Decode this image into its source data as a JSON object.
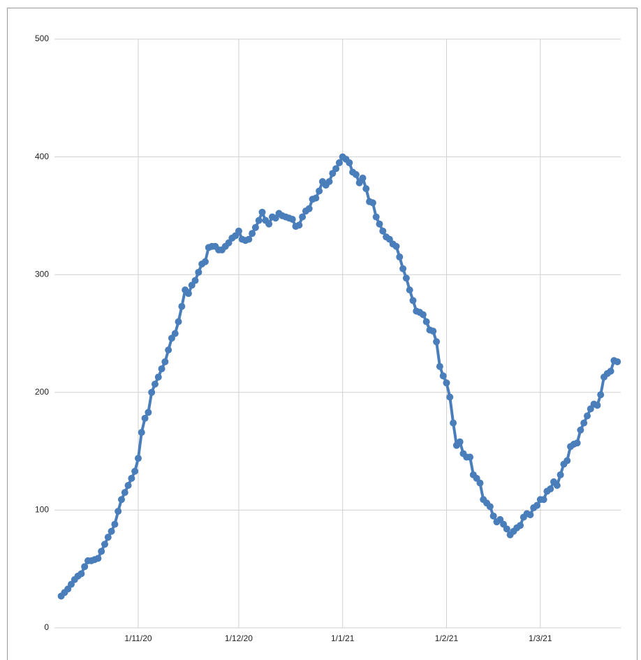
{
  "chart_data": {
    "type": "line",
    "x": [
      "9/10/20",
      "10/10/20",
      "11/10/20",
      "12/10/20",
      "13/10/20",
      "14/10/20",
      "15/10/20",
      "16/10/20",
      "17/10/20",
      "18/10/20",
      "19/10/20",
      "20/10/20",
      "21/10/20",
      "22/10/20",
      "23/10/20",
      "24/10/20",
      "25/10/20",
      "26/10/20",
      "27/10/20",
      "28/10/20",
      "29/10/20",
      "30/10/20",
      "31/10/20",
      "1/11/20",
      "2/11/20",
      "3/11/20",
      "4/11/20",
      "5/11/20",
      "6/11/20",
      "7/11/20",
      "8/11/20",
      "9/11/20",
      "10/11/20",
      "11/11/20",
      "12/11/20",
      "13/11/20",
      "14/11/20",
      "15/11/20",
      "16/11/20",
      "17/11/20",
      "18/11/20",
      "19/11/20",
      "20/11/20",
      "21/11/20",
      "22/11/20",
      "23/11/20",
      "24/11/20",
      "25/11/20",
      "26/11/20",
      "27/11/20",
      "28/11/20",
      "29/11/20",
      "30/11/20",
      "1/12/20",
      "2/12/20",
      "3/12/20",
      "4/12/20",
      "5/12/20",
      "6/12/20",
      "7/12/20",
      "8/12/20",
      "9/12/20",
      "10/12/20",
      "11/12/20",
      "12/12/20",
      "13/12/20",
      "14/12/20",
      "15/12/20",
      "16/12/20",
      "17/12/20",
      "18/12/20",
      "19/12/20",
      "20/12/20",
      "21/12/20",
      "22/12/20",
      "23/12/20",
      "24/12/20",
      "25/12/20",
      "26/12/20",
      "27/12/20",
      "28/12/20",
      "29/12/20",
      "30/12/20",
      "31/12/20",
      "1/1/21",
      "2/1/21",
      "3/1/21",
      "4/1/21",
      "5/1/21",
      "6/1/21",
      "7/1/21",
      "8/1/21",
      "9/1/21",
      "10/1/21",
      "11/1/21",
      "12/1/21",
      "13/1/21",
      "14/1/21",
      "15/1/21",
      "16/1/21",
      "17/1/21",
      "18/1/21",
      "19/1/21",
      "20/1/21",
      "21/1/21",
      "22/1/21",
      "23/1/21",
      "24/1/21",
      "25/1/21",
      "26/1/21",
      "27/1/21",
      "28/1/21",
      "29/1/21",
      "30/1/21",
      "31/1/21",
      "1/2/21",
      "2/2/21",
      "3/2/21",
      "4/2/21",
      "5/2/21",
      "6/2/21",
      "7/2/21",
      "8/2/21",
      "9/2/21",
      "10/2/21",
      "11/2/21",
      "12/2/21",
      "13/2/21",
      "14/2/21",
      "15/2/21",
      "16/2/21",
      "17/2/21",
      "18/2/21",
      "19/2/21",
      "20/2/21",
      "21/2/21",
      "22/2/21",
      "23/2/21",
      "24/2/21",
      "25/2/21",
      "26/2/21",
      "27/2/21",
      "28/2/21",
      "1/3/21",
      "2/3/21",
      "3/3/21",
      "4/3/21",
      "5/3/21",
      "6/3/21",
      "7/3/21",
      "8/3/21",
      "9/3/21",
      "10/3/21",
      "11/3/21",
      "12/3/21",
      "13/3/21",
      "14/3/21",
      "15/3/21",
      "16/3/21",
      "17/3/21",
      "18/3/21",
      "19/3/21",
      "20/3/21",
      "21/3/21",
      "22/3/21",
      "23/3/21",
      "24/3/21"
    ],
    "series": [
      {
        "color": "#4a7ebb",
        "values": [
          27,
          30,
          33,
          37,
          41,
          44,
          46,
          52,
          57,
          57,
          58,
          59,
          65,
          71,
          77,
          82,
          88,
          99,
          109,
          115,
          121,
          127,
          133,
          144,
          166,
          178,
          183,
          200,
          207,
          213,
          220,
          226,
          236,
          246,
          250,
          260,
          273,
          287,
          284,
          291,
          295,
          302,
          309,
          311,
          323,
          324,
          324,
          321,
          321,
          324,
          327,
          331,
          333,
          337,
          330,
          329,
          330,
          335,
          340,
          346,
          353,
          346,
          343,
          349,
          348,
          352,
          350,
          349,
          348,
          347,
          341,
          342,
          349,
          354,
          356,
          364,
          365,
          371,
          379,
          376,
          379,
          386,
          390,
          395,
          400,
          398,
          395,
          387,
          385,
          378,
          382,
          373,
          362,
          361,
          349,
          343,
          337,
          332,
          330,
          326,
          324,
          315,
          305,
          297,
          287,
          278,
          269,
          268,
          266,
          260,
          253,
          252,
          243,
          222,
          214,
          208,
          196,
          174,
          155,
          158,
          148,
          145,
          145,
          130,
          127,
          123,
          109,
          106,
          103,
          95,
          90,
          92,
          88,
          84,
          79,
          82,
          85,
          87,
          94,
          97,
          96,
          102,
          104,
          109,
          109,
          116,
          118,
          124,
          121,
          130,
          139,
          142,
          154,
          156,
          157,
          168,
          174,
          180,
          186,
          190,
          189,
          198,
          213,
          216,
          218,
          227,
          226
        ]
      }
    ],
    "xlim": [
      "7/10/20",
      "25/3/21"
    ],
    "xticks": [
      "1/11/20",
      "1/12/20",
      "1/1/21",
      "1/2/21",
      "1/3/21"
    ],
    "ylim": [
      0,
      500
    ],
    "yticks": [
      0,
      100,
      200,
      300,
      400,
      500
    ],
    "grid": true
  }
}
